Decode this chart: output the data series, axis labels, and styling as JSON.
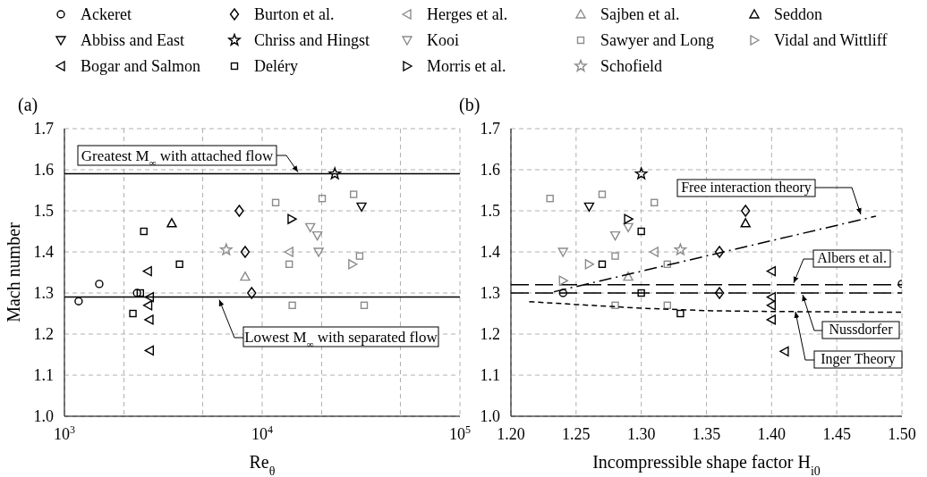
{
  "chart_data": [
    {
      "type": "scatter",
      "title": "(a)",
      "xlabel": "Re$_{θ}$",
      "ylabel": "Mach number",
      "log": "x",
      "grid": true,
      "legend": "top",
      "xlim": [
        1000,
        100000
      ],
      "xticks": [
        {
          "value": 1000,
          "label": "10$^{3}$"
        },
        {
          "value": 2000,
          "label": null
        },
        {
          "value": 5000,
          "label": null
        },
        {
          "value": 10000,
          "label": "10$^{4}$"
        },
        {
          "value": 20000,
          "label": null
        },
        {
          "value": 50000,
          "label": null
        },
        {
          "value": 100000,
          "label": "10$^{5}$"
        }
      ],
      "ylim": [
        1.0,
        1.7
      ],
      "yticks": [
        {
          "value": 1,
          "label": "1.0"
        },
        1.1,
        1.2,
        1.3,
        1.4,
        1.5,
        1.6,
        1.7
      ],
      "ref_lines": [
        {
          "axis": "y",
          "value": 1.59,
          "label": "Greatest M$_{∞}$ with attached flow",
          "color": "#000000",
          "line_style": "solid"
        },
        {
          "axis": "y",
          "value": 1.29,
          "label": "Lowest M$_{∞}$ with separated flow",
          "color": "#000000",
          "line_style": "solid"
        }
      ],
      "series": [
        {
          "name": "Ackeret",
          "color": "#000000",
          "marker": "circle",
          "x": [
            1180,
            1500,
            2330
          ],
          "values": [
            1.28,
            1.322,
            1.3
          ]
        },
        {
          "name": "Abbiss and East",
          "color": "#000000",
          "marker": "triangle-down",
          "x": [
            31800
          ],
          "values": [
            1.51
          ]
        },
        {
          "name": "Bogar and Salmon",
          "color": "#000000",
          "marker": "triangle-left",
          "x": [
            2640,
            2700,
            2650,
            2690,
            2700
          ],
          "values": [
            1.353,
            1.29,
            1.27,
            1.235,
            1.16
          ]
        },
        {
          "name": "Burton et al.",
          "color": "#000000",
          "marker": "diamond",
          "x": [
            7660,
            8200,
            8850
          ],
          "values": [
            1.5,
            1.4,
            1.3
          ]
        },
        {
          "name": "Chriss and Hingst",
          "color": "#000000",
          "marker": "star",
          "x": [
            23300
          ],
          "values": [
            1.59
          ]
        },
        {
          "name": "Deléry",
          "color": "#000000",
          "marker": "square",
          "x": [
            2420,
            2220,
            2520,
            3820
          ],
          "values": [
            1.3,
            1.25,
            1.45,
            1.37
          ]
        },
        {
          "name": "Herges et al.",
          "color": "#8c8c8c",
          "marker": "triangle-left",
          "x": [
            13700
          ],
          "values": [
            1.4
          ]
        },
        {
          "name": "Kooi",
          "color": "#8c8c8c",
          "marker": "triangle-down",
          "x": [
            17500,
            19000,
            19300
          ],
          "values": [
            1.46,
            1.44,
            1.4
          ]
        },
        {
          "name": "Morris et al.",
          "color": "#000000",
          "marker": "triangle-right",
          "x": [
            14100
          ],
          "values": [
            1.48
          ]
        },
        {
          "name": "Sajben et al.",
          "color": "#8c8c8c",
          "marker": "triangle",
          "x": [
            8200
          ],
          "values": [
            1.34
          ]
        },
        {
          "name": "Sawyer and Long",
          "color": "#8c8c8c",
          "marker": "square",
          "x": [
            11700,
            20100,
            29000,
            13700,
            14200,
            31100,
            32800
          ],
          "values": [
            1.52,
            1.53,
            1.54,
            1.37,
            1.27,
            1.39,
            1.27
          ]
        },
        {
          "name": "Schofield",
          "color": "#8c8c8c",
          "marker": "star",
          "x": [
            6580
          ],
          "values": [
            1.405
          ]
        },
        {
          "name": "Seddon",
          "color": "#000000",
          "marker": "triangle",
          "x": [
            3490
          ],
          "values": [
            1.47
          ]
        },
        {
          "name": "Vidal and Wittliff",
          "color": "#8c8c8c",
          "marker": "triangle-right",
          "x": [
            28600
          ],
          "values": [
            1.37
          ]
        }
      ]
    },
    {
      "type": "scatter",
      "title": "(b)",
      "xlabel": "Incompressible shape factor H$_{i0}$",
      "grid": true,
      "xlim": [
        1.2,
        1.5
      ],
      "xticks": [
        {
          "value": 1.2,
          "label": "1.20"
        },
        1.25,
        {
          "value": 1.3,
          "label": "1.30"
        },
        1.35,
        {
          "value": 1.4,
          "label": "1.40"
        },
        1.45,
        {
          "value": 1.5,
          "label": "1.50"
        }
      ],
      "ylim": [
        1.0,
        1.7
      ],
      "yticks": [
        {
          "value": 1,
          "label": "1.0"
        },
        1.1,
        1.2,
        1.3,
        1.4,
        1.5,
        1.6,
        1.7
      ],
      "ref_lines": [
        {
          "axis": "y",
          "value": 1.32,
          "label": "Albers et al.",
          "color": "#000000",
          "line_style": "dashed"
        },
        {
          "axis": "y",
          "value": 1.3,
          "label": "Nussdorfer",
          "color": "#000000",
          "line_style": "dashed"
        }
      ],
      "series": [
        {
          "color": "#000000",
          "marker": "circle",
          "x": [
            1.24,
            1.5
          ],
          "values": [
            1.3,
            1.322
          ]
        },
        {
          "color": "#000000",
          "marker": "triangle-down",
          "x": [
            1.26
          ],
          "values": [
            1.51
          ]
        },
        {
          "color": "#000000",
          "marker": "triangle-left",
          "x": [
            1.4,
            1.4,
            1.4,
            1.4,
            1.41
          ],
          "values": [
            1.353,
            1.29,
            1.27,
            1.235,
            1.158
          ]
        },
        {
          "color": "#000000",
          "marker": "diamond",
          "x": [
            1.36,
            1.36,
            1.38
          ],
          "values": [
            1.4,
            1.3,
            1.5
          ]
        },
        {
          "color": "#000000",
          "marker": "star",
          "x": [
            1.3
          ],
          "values": [
            1.59
          ]
        },
        {
          "color": "#000000",
          "marker": "square",
          "x": [
            1.3,
            1.27,
            1.3,
            1.33
          ],
          "values": [
            1.45,
            1.37,
            1.3,
            1.25
          ]
        },
        {
          "color": "#8c8c8c",
          "marker": "triangle-left",
          "x": [
            1.31
          ],
          "values": [
            1.4
          ]
        },
        {
          "color": "#8c8c8c",
          "marker": "triangle-down",
          "x": [
            1.24,
            1.28,
            1.29
          ],
          "values": [
            1.4,
            1.44,
            1.46
          ]
        },
        {
          "color": "#000000",
          "marker": "triangle-right",
          "x": [
            1.29
          ],
          "values": [
            1.48
          ]
        },
        {
          "color": "#8c8c8c",
          "marker": "triangle",
          "x": [
            1.29
          ],
          "values": [
            1.34
          ]
        },
        {
          "color": "#8c8c8c",
          "marker": "square",
          "x": [
            1.23,
            1.27,
            1.31,
            1.28,
            1.32,
            1.28,
            1.32
          ],
          "values": [
            1.53,
            1.54,
            1.52,
            1.39,
            1.37,
            1.27,
            1.27
          ]
        },
        {
          "color": "#8c8c8c",
          "marker": "star",
          "x": [
            1.33
          ],
          "values": [
            1.405
          ]
        },
        {
          "color": "#000000",
          "marker": "triangle",
          "x": [
            1.38
          ],
          "values": [
            1.47
          ]
        },
        {
          "color": "#8c8c8c",
          "marker": "triangle-right",
          "x": [
            1.24,
            1.26
          ],
          "values": [
            1.33,
            1.37
          ]
        },
        {
          "name": "Free interaction theory",
          "type": "line",
          "line_style": "dashdot",
          "color": "#000000",
          "x": [
            1.233,
            1.48
          ],
          "values": [
            1.303,
            1.487
          ]
        },
        {
          "name": "Inger Theory",
          "type": "line",
          "line_style": "dashed",
          "color": "#000000",
          "x": [
            1.214,
            1.25,
            1.3,
            1.35,
            1.4,
            1.45,
            1.5
          ],
          "values": [
            1.279,
            1.272,
            1.263,
            1.257,
            1.255,
            1.254,
            1.253
          ]
        }
      ]
    }
  ]
}
